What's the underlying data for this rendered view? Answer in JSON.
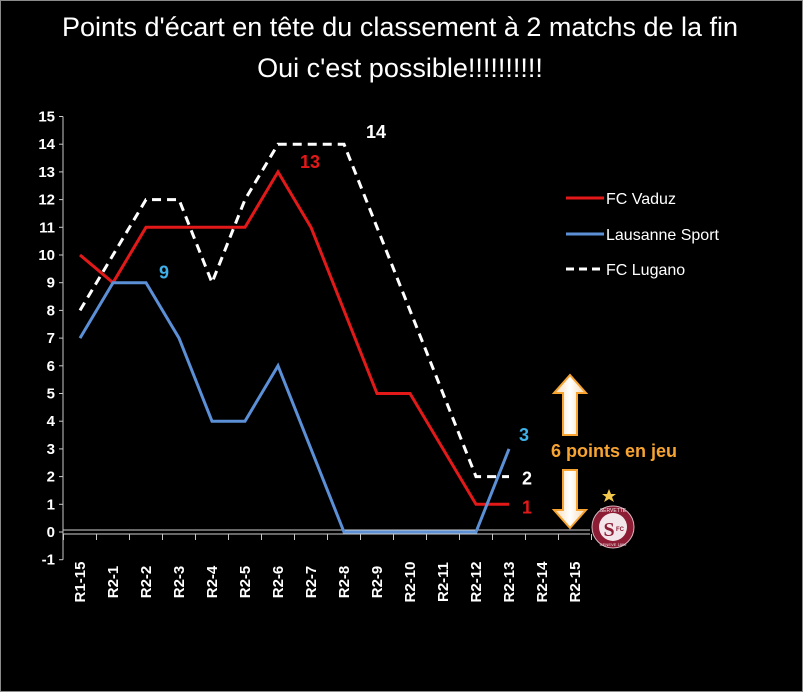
{
  "chart_data": {
    "type": "line",
    "title": "Points d'écart en tête du classement à 2 matchs de la fin",
    "subtitle": "Oui c'est possible!!!!!!!!!!",
    "categories": [
      "R1-15",
      "R2-1",
      "R2-2",
      "R2-3",
      "R2-4",
      "R2-5",
      "R2-6",
      "R2-7",
      "R2-8",
      "R2-9",
      "R2-10",
      "R2-11",
      "R2-12",
      "R2-13",
      "R2-14",
      "R2-15"
    ],
    "ylim": [
      -1,
      15
    ],
    "yticks": [
      15,
      14,
      13,
      12,
      11,
      10,
      9,
      8,
      7,
      6,
      5,
      4,
      3,
      2,
      1,
      0,
      -1
    ],
    "grid": false,
    "legend_position": "right",
    "series": [
      {
        "name": "FC Vaduz",
        "color": "#e31919",
        "style": "solid",
        "values": [
          10,
          9,
          11,
          11,
          11,
          11,
          13,
          11,
          8,
          5,
          5,
          3,
          1,
          1,
          null,
          null
        ]
      },
      {
        "name": "Lausanne Sport",
        "color": "#5b8fd6",
        "style": "solid",
        "values": [
          7,
          9,
          9,
          7,
          4,
          4,
          6,
          3,
          0,
          0,
          0,
          0,
          0,
          3,
          null,
          null
        ]
      },
      {
        "name": "FC Lugano",
        "color": "#ffffff",
        "style": "dashed",
        "values": [
          8,
          10,
          12,
          12,
          9,
          12,
          14,
          14,
          14,
          11,
          8,
          5,
          2,
          2,
          null,
          null
        ]
      }
    ],
    "data_labels": [
      {
        "text": "13",
        "color": "#e31919",
        "x_index": 6,
        "y": 13
      },
      {
        "text": "9",
        "color": "#3fb0e8",
        "x_index": 2,
        "y": 9
      },
      {
        "text": "14",
        "color": "#ffffff",
        "x_index": 8,
        "y": 14
      },
      {
        "text": "3",
        "color": "#3fb0e8",
        "x_index": 13,
        "y": 3
      },
      {
        "text": "2",
        "color": "#ffffff",
        "x_index": 13,
        "y": 2
      },
      {
        "text": "1",
        "color": "#e31919",
        "x_index": 13,
        "y": 1
      }
    ],
    "annotation": {
      "text": "6 points en jeu",
      "color": "#f7a432"
    }
  },
  "logo": {
    "icon": "servette-fc-crest-icon",
    "letters": "S",
    "sub": "FC",
    "ring_text": "SERVETTE",
    "ring_text_bottom": "GENEVE 1890",
    "color": "#8c1d35"
  }
}
